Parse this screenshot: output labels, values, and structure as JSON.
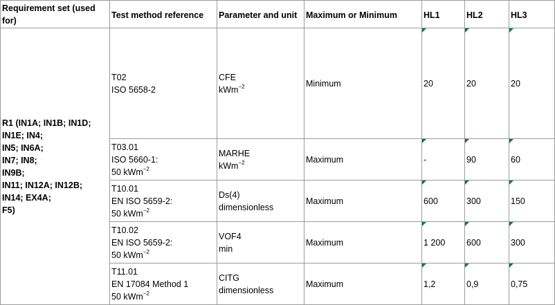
{
  "headers": {
    "requirement": "Requirement set (used for)",
    "test_method": "Test method reference",
    "parameter": "Parameter and unit",
    "max_min": "Maximum or Minimum",
    "hl1": "HL1",
    "hl2": "HL2",
    "hl3": "HL3"
  },
  "requirement_lines": [
    "R1 (IN1A; IN1B; IN1D;",
    "IN1E; IN4;",
    "IN5; IN6A;",
    "IN7; IN8;",
    "IN9B;",
    "IN11; IN12A; IN12B;",
    "IN14; EX4A;",
    "F5)"
  ],
  "rows": [
    {
      "method_lines": [
        "T02",
        "ISO 5658-2"
      ],
      "param_name": "CFE",
      "param_unit": "kWm",
      "param_unit_sup": "−2",
      "max_min": "Minimum",
      "hl1": "20",
      "hl2": "20",
      "hl3": "20"
    },
    {
      "method_lines": [
        "T03.01",
        "ISO 5660-1:",
        "50 kWm"
      ],
      "method_sup": "−2",
      "param_name": "MARHE",
      "param_unit": "kWm",
      "param_unit_sup": "−2",
      "max_min": "Maximum",
      "hl1": "-",
      "hl2": "90",
      "hl3": "60"
    },
    {
      "method_lines": [
        "T10.01",
        "EN ISO 5659-2:",
        "50 kWm"
      ],
      "method_sup": "−2",
      "param_name": "Ds(4)",
      "param_unit": "dimensionless",
      "max_min": "Maximum",
      "hl1": "600",
      "hl2": "300",
      "hl3": "150"
    },
    {
      "method_lines": [
        "T10.02",
        "EN ISO 5659-2:",
        "50 kWm"
      ],
      "method_sup": "−2",
      "param_name": "VOF4",
      "param_unit": "min",
      "max_min": "Maximum",
      "hl1": "1 200",
      "hl2": "600",
      "hl3": "300"
    },
    {
      "method_lines": [
        "T11.01",
        "EN 17084 Method 1",
        "50 kWm"
      ],
      "method_sup": "−2",
      "param_name": "CITG",
      "param_unit": "dimensionless",
      "max_min": "Maximum",
      "hl1": "1,2",
      "hl2": "0,9",
      "hl3": "0,75"
    }
  ]
}
